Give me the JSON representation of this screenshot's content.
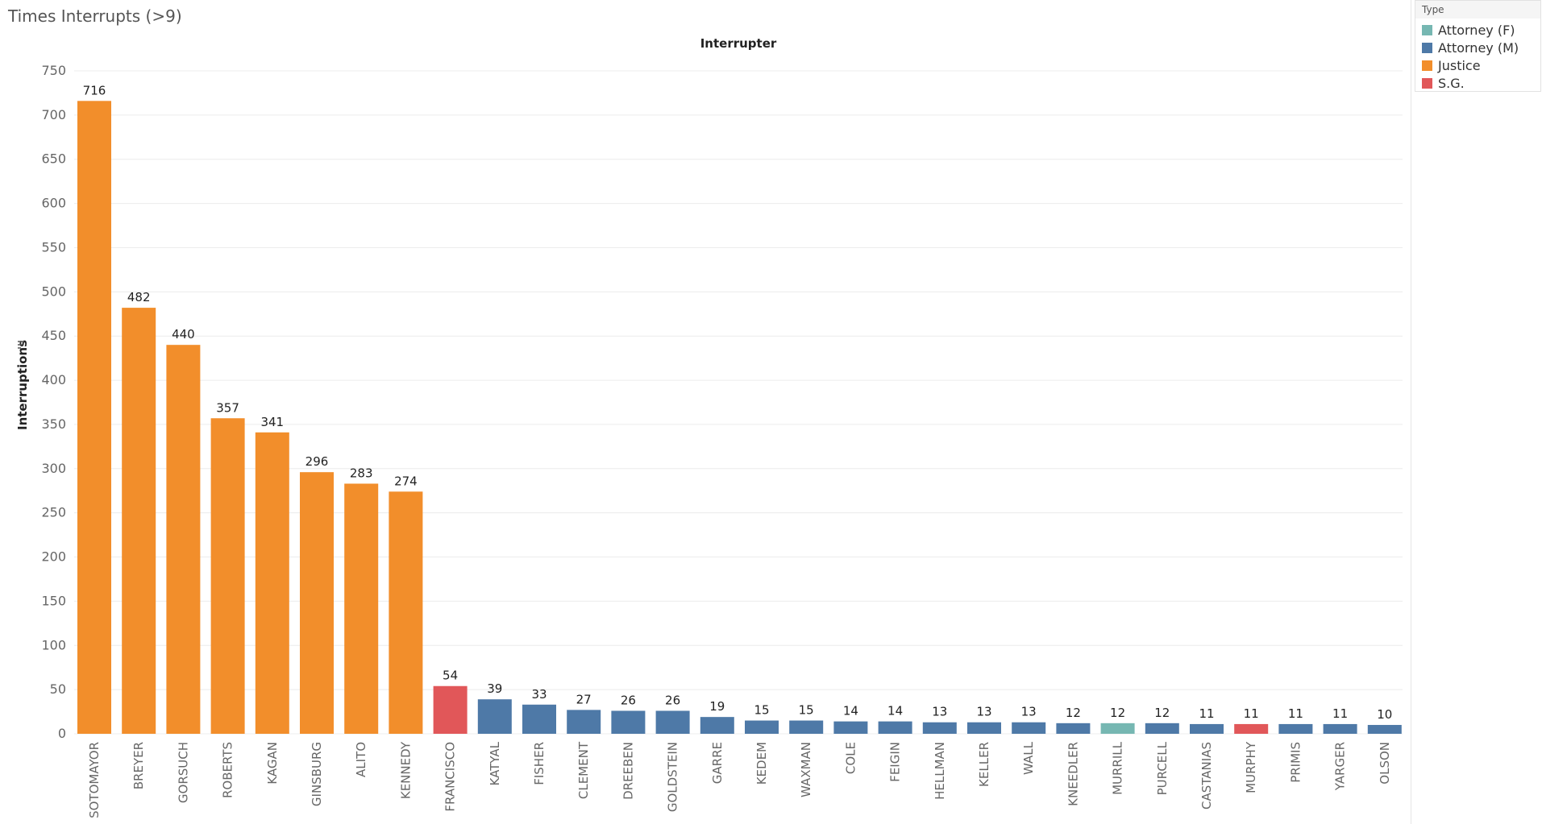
{
  "sheet_title": "Times Interrupts (>9)",
  "legend": {
    "title": "Type",
    "items": [
      {
        "label": "Attorney (F)",
        "color": "#76b7b2"
      },
      {
        "label": "Attorney (M)",
        "color": "#4e79a7"
      },
      {
        "label": "Justice",
        "color": "#f28e2b"
      },
      {
        "label": "S.G.",
        "color": "#e15759"
      }
    ]
  },
  "chart_data": {
    "type": "bar",
    "title": "Interrupter",
    "xlabel": "",
    "ylabel": "Interruptions",
    "ylim": [
      0,
      750
    ],
    "yticks": [
      0,
      50,
      100,
      150,
      200,
      250,
      300,
      350,
      400,
      450,
      500,
      550,
      600,
      650,
      700,
      750
    ],
    "grid": true,
    "legend_position": "top-right",
    "categories": [
      "SOTOMAYOR",
      "BREYER",
      "GORSUCH",
      "ROBERTS",
      "KAGAN",
      "GINSBURG",
      "ALITO",
      "KENNEDY",
      "FRANCISCO",
      "KATYAL",
      "FISHER",
      "CLEMENT",
      "DREEBEN",
      "GOLDSTEIN",
      "GARRE",
      "KEDEM",
      "WAXMAN",
      "COLE",
      "FEIGIN",
      "HELLMAN",
      "KELLER",
      "WALL",
      "KNEEDLER",
      "MURRILL",
      "PURCELL",
      "CASTANIAS",
      "MURPHY",
      "PRIMIS",
      "YARGER",
      "OLSON"
    ],
    "values": [
      716,
      482,
      440,
      357,
      341,
      296,
      283,
      274,
      54,
      39,
      33,
      27,
      26,
      26,
      19,
      15,
      15,
      14,
      14,
      13,
      13,
      13,
      12,
      12,
      12,
      11,
      11,
      11,
      11,
      10
    ],
    "types": [
      "Justice",
      "Justice",
      "Justice",
      "Justice",
      "Justice",
      "Justice",
      "Justice",
      "Justice",
      "S.G.",
      "Attorney (M)",
      "Attorney (M)",
      "Attorney (M)",
      "Attorney (M)",
      "Attorney (M)",
      "Attorney (M)",
      "Attorney (M)",
      "Attorney (M)",
      "Attorney (M)",
      "Attorney (M)",
      "Attorney (M)",
      "Attorney (M)",
      "Attorney (M)",
      "Attorney (M)",
      "Attorney (F)",
      "Attorney (M)",
      "Attorney (M)",
      "S.G.",
      "Attorney (M)",
      "Attorney (M)",
      "Attorney (M)"
    ]
  }
}
